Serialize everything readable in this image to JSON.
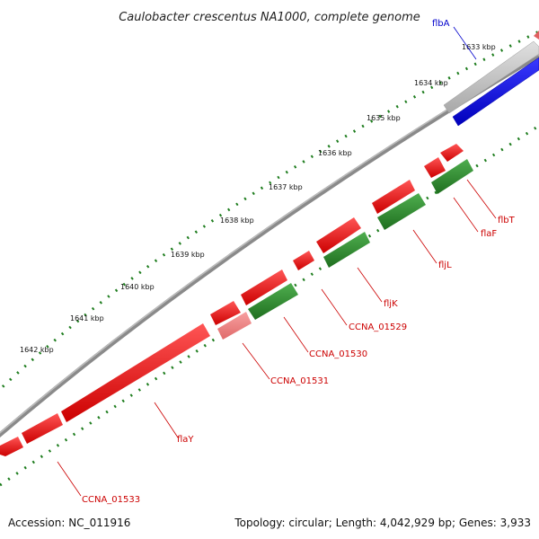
{
  "title": "Caulobacter crescentus NA1000, complete genome",
  "footer": {
    "accession": "Accession: NC_011916",
    "summary": "Topology: circular; Length: 4,042,929 bp; Genes: 3,933"
  },
  "ticks": [
    "1633 kbp",
    "1634 kbp",
    "1635 kbp",
    "1636 kbp",
    "1637 kbp",
    "1638 kbp",
    "1639 kbp",
    "1640 kbp",
    "1641 kbp",
    "1642 kbp"
  ],
  "genes": [
    {
      "label": "flbA",
      "color": "#0000cc"
    },
    {
      "label": "flbT",
      "color": "#cc0000"
    },
    {
      "label": "flaF",
      "color": "#cc0000"
    },
    {
      "label": "fljL",
      "color": "#cc0000"
    },
    {
      "label": "fljK",
      "color": "#cc0000"
    },
    {
      "label": "CCNA_01529",
      "color": "#cc0000"
    },
    {
      "label": "CCNA_01530",
      "color": "#cc0000"
    },
    {
      "label": "CCNA_01531",
      "color": "#cc0000"
    },
    {
      "label": "flaY",
      "color": "#cc0000"
    },
    {
      "label": "CCNA_01533",
      "color": "#cc0000"
    }
  ],
  "colors": {
    "forward_strand": "#ee0000",
    "reverse_strand": "#2e8b2e",
    "pseudo": "#ee7777",
    "rna": "#0000ee",
    "backbone": "#888888",
    "ticks": "#1e7d1e"
  }
}
